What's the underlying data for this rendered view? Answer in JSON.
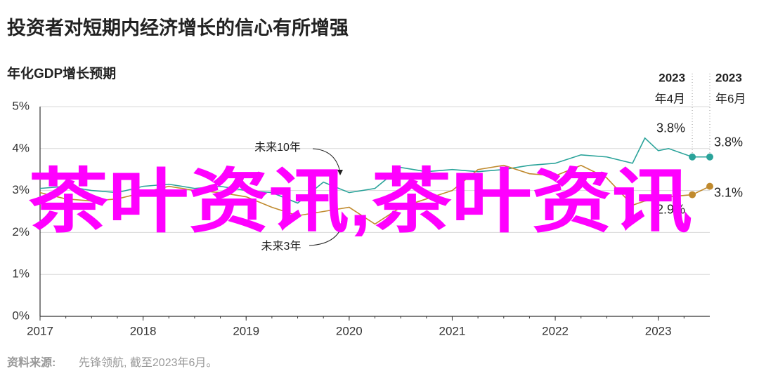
{
  "chart_data": {
    "type": "line",
    "title": "投资者对短期内经济增长的信心有所增强",
    "subtitle": "年化GDP增长预期",
    "source_label": "资料来源:",
    "source_text": "先锋领航, 截至2023年6月。",
    "watermark": "茶叶资讯,茶叶资讯",
    "xlim": [
      2017,
      2023.5
    ],
    "xticks": [
      2017,
      2018,
      2019,
      2020,
      2021,
      2022,
      2023
    ],
    "ylim": [
      0,
      5
    ],
    "yticks": [
      {
        "value": 0,
        "label": "0%"
      },
      {
        "value": 1,
        "label": "1%"
      },
      {
        "value": 2,
        "label": "2%"
      },
      {
        "value": 3,
        "label": "3%"
      },
      {
        "value": 4,
        "label": "4%"
      },
      {
        "value": 5,
        "label": "5%"
      }
    ],
    "x": [
      2017,
      2017.25,
      2017.5,
      2017.75,
      2018,
      2018.25,
      2018.5,
      2018.75,
      2019,
      2019.25,
      2019.5,
      2019.75,
      2020,
      2020.25,
      2020.5,
      2020.75,
      2021,
      2021.25,
      2021.5,
      2021.75,
      2022,
      2022.25,
      2022.5,
      2022.75,
      2022.87,
      2023,
      2023.1,
      2023.33,
      2023.5
    ],
    "series": [
      {
        "name": "未来10年",
        "color": "#2aa39a",
        "values": [
          3.05,
          3.1,
          3.0,
          2.95,
          3.1,
          3.15,
          3.05,
          3.1,
          3.0,
          2.95,
          2.7,
          3.2,
          2.95,
          3.05,
          3.55,
          3.45,
          3.5,
          3.45,
          3.5,
          3.6,
          3.65,
          3.85,
          3.8,
          3.65,
          4.25,
          3.95,
          4.0,
          3.8,
          3.8
        ],
        "value_labels": [
          null,
          null,
          null,
          null,
          null,
          null,
          null,
          null,
          null,
          null,
          null,
          null,
          null,
          null,
          null,
          null,
          null,
          null,
          null,
          null,
          null,
          null,
          null,
          null,
          null,
          null,
          null,
          "3.8%",
          "3.8%"
        ]
      },
      {
        "name": "未来3年",
        "color": "#c08a2e",
        "values": [
          2.95,
          2.8,
          2.75,
          2.8,
          2.95,
          3.1,
          3.0,
          2.95,
          2.85,
          2.6,
          2.4,
          2.5,
          2.6,
          2.2,
          2.6,
          2.8,
          3.0,
          3.5,
          3.6,
          3.4,
          3.35,
          3.6,
          3.3,
          2.65,
          2.75,
          2.8,
          2.85,
          2.9,
          3.1
        ],
        "value_labels": [
          null,
          null,
          null,
          null,
          null,
          null,
          null,
          null,
          null,
          null,
          null,
          null,
          null,
          null,
          null,
          null,
          null,
          null,
          null,
          null,
          null,
          null,
          null,
          null,
          null,
          null,
          null,
          "2.9%",
          "3.1%"
        ]
      }
    ],
    "annotations": [
      {
        "x": 2023.33,
        "lines": [
          "2023",
          "年4月"
        ]
      },
      {
        "x": 2023.5,
        "lines": [
          "2023",
          "年6月"
        ]
      }
    ]
  }
}
